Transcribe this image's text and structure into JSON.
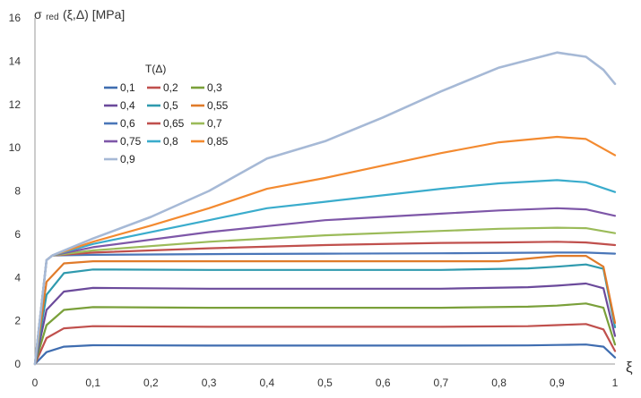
{
  "chart_data": {
    "type": "line",
    "ylabel": "σred (ξ,Δ) [MPa]",
    "ylabel_parts": {
      "sigma": "σ",
      "sub": "red",
      "rest": " (ξ,Δ) [MPa]"
    },
    "xlabel": "ξ",
    "xlim": [
      0,
      1
    ],
    "ylim": [
      0,
      16
    ],
    "x_ticks": [
      "0",
      "0,1",
      "0,2",
      "0,3",
      "0,4",
      "0,5",
      "0,6",
      "0,7",
      "0,8",
      "0,9",
      "1"
    ],
    "x_tick_values": [
      0,
      0.1,
      0.2,
      0.3,
      0.4,
      0.5,
      0.6,
      0.7,
      0.8,
      0.9,
      1
    ],
    "y_ticks": [
      "0",
      "2",
      "4",
      "6",
      "8",
      "10",
      "12",
      "14",
      "16"
    ],
    "y_tick_values": [
      0,
      2,
      4,
      6,
      8,
      10,
      12,
      14,
      16
    ],
    "grid": "none",
    "legend_title": "T(Δ)",
    "legend_position": "top-left",
    "series": [
      {
        "name": "0,1",
        "color": "#3f6db0",
        "x": [
          0,
          0.02,
          0.05,
          0.1,
          0.3,
          0.5,
          0.7,
          0.85,
          0.9,
          0.95,
          0.98,
          1
        ],
        "y": [
          0,
          0.55,
          0.8,
          0.87,
          0.85,
          0.85,
          0.85,
          0.86,
          0.88,
          0.9,
          0.8,
          0.3
        ]
      },
      {
        "name": "0,2",
        "color": "#c0504d",
        "x": [
          0,
          0.02,
          0.05,
          0.1,
          0.3,
          0.5,
          0.7,
          0.85,
          0.9,
          0.95,
          0.98,
          1
        ],
        "y": [
          0,
          1.2,
          1.65,
          1.75,
          1.72,
          1.72,
          1.72,
          1.75,
          1.8,
          1.85,
          1.6,
          0.6
        ]
      },
      {
        "name": "0,3",
        "color": "#7aa03a",
        "x": [
          0,
          0.02,
          0.05,
          0.1,
          0.3,
          0.5,
          0.7,
          0.85,
          0.9,
          0.95,
          0.98,
          1
        ],
        "y": [
          0,
          1.8,
          2.5,
          2.63,
          2.6,
          2.6,
          2.6,
          2.65,
          2.7,
          2.8,
          2.6,
          0.9
        ]
      },
      {
        "name": "0,4",
        "color": "#6b4a9b",
        "x": [
          0,
          0.02,
          0.05,
          0.1,
          0.3,
          0.5,
          0.7,
          0.85,
          0.9,
          0.95,
          0.98,
          1
        ],
        "y": [
          0,
          2.5,
          3.35,
          3.52,
          3.48,
          3.48,
          3.48,
          3.55,
          3.62,
          3.72,
          3.5,
          1.3
        ]
      },
      {
        "name": "0,5",
        "color": "#2f9aae",
        "x": [
          0,
          0.02,
          0.05,
          0.1,
          0.3,
          0.5,
          0.7,
          0.85,
          0.9,
          0.95,
          0.98,
          1
        ],
        "y": [
          0,
          3.2,
          4.2,
          4.37,
          4.35,
          4.35,
          4.35,
          4.42,
          4.5,
          4.6,
          4.4,
          1.7
        ]
      },
      {
        "name": "0,55",
        "color": "#e07b2a",
        "x": [
          0,
          0.02,
          0.05,
          0.1,
          0.3,
          0.5,
          0.7,
          0.8,
          0.9,
          0.95,
          0.98,
          1
        ],
        "y": [
          0,
          3.8,
          4.65,
          4.75,
          4.75,
          4.75,
          4.75,
          4.75,
          5.0,
          5.0,
          4.5,
          1.9
        ]
      },
      {
        "name": "0,6",
        "color": "#4a76b8",
        "x": [
          0,
          0.02,
          0.03,
          0.1,
          0.3,
          0.5,
          0.7,
          0.9,
          0.95,
          1
        ],
        "y": [
          0,
          4.8,
          5.02,
          5.05,
          5.08,
          5.1,
          5.12,
          5.15,
          5.15,
          5.1
        ]
      },
      {
        "name": "0,65",
        "color": "#c0504d",
        "x": [
          0,
          0.02,
          0.03,
          0.1,
          0.3,
          0.5,
          0.7,
          0.8,
          0.9,
          0.95,
          1
        ],
        "y": [
          0,
          4.8,
          5.02,
          5.15,
          5.35,
          5.5,
          5.6,
          5.62,
          5.65,
          5.62,
          5.5
        ]
      },
      {
        "name": "0,7",
        "color": "#9bbb59",
        "x": [
          0,
          0.02,
          0.03,
          0.1,
          0.3,
          0.5,
          0.7,
          0.8,
          0.9,
          0.95,
          1
        ],
        "y": [
          0,
          4.8,
          5.02,
          5.25,
          5.65,
          5.95,
          6.15,
          6.25,
          6.3,
          6.28,
          6.05
        ]
      },
      {
        "name": "0,75",
        "color": "#7e57a8",
        "x": [
          0,
          0.02,
          0.03,
          0.1,
          0.3,
          0.5,
          0.7,
          0.8,
          0.9,
          0.95,
          1
        ],
        "y": [
          0,
          4.8,
          5.02,
          5.4,
          6.1,
          6.65,
          6.95,
          7.1,
          7.2,
          7.15,
          6.85
        ]
      },
      {
        "name": "0,8",
        "color": "#3aaccc",
        "x": [
          0,
          0.02,
          0.03,
          0.1,
          0.3,
          0.4,
          0.5,
          0.7,
          0.8,
          0.9,
          0.95,
          1
        ],
        "y": [
          0,
          4.8,
          5.02,
          5.55,
          6.65,
          7.2,
          7.5,
          8.1,
          8.35,
          8.5,
          8.4,
          7.95
        ]
      },
      {
        "name": "0,85",
        "color": "#f38a30",
        "x": [
          0,
          0.02,
          0.03,
          0.1,
          0.2,
          0.3,
          0.4,
          0.5,
          0.7,
          0.8,
          0.9,
          0.95,
          1
        ],
        "y": [
          0,
          4.8,
          5.02,
          5.65,
          6.4,
          7.2,
          8.1,
          8.6,
          9.75,
          10.25,
          10.5,
          10.4,
          9.65
        ]
      },
      {
        "name": "0,9",
        "color": "#a6b9d6",
        "x": [
          0,
          0.02,
          0.03,
          0.1,
          0.2,
          0.3,
          0.4,
          0.5,
          0.6,
          0.7,
          0.8,
          0.9,
          0.95,
          0.98,
          1
        ],
        "y": [
          0,
          4.8,
          5.02,
          5.8,
          6.8,
          8.0,
          9.5,
          10.3,
          11.4,
          12.6,
          13.7,
          14.4,
          14.2,
          13.6,
          12.95
        ]
      }
    ]
  }
}
